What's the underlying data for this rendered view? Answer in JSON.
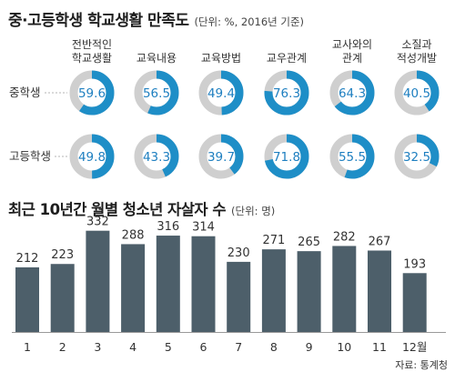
{
  "survey": {
    "title": "중·고등학생 학교생활 만족도",
    "unit_note": "(단위: %, 2016년 기준)"
  },
  "monthly": {
    "title": "최근 10년간 월별 청소년 자살자 수",
    "unit_note": "(단위: 명)"
  },
  "source": "자료: 통계청",
  "colors": {
    "ring_fill": "#1e8ec7",
    "ring_track": "#cfcfcf",
    "ring_value_text": "#1e7fc0",
    "bar": "#4d5f6a",
    "bar_label": "#333333",
    "baseline": "#9a9a9a",
    "dashed_leader": "#b5b5b5"
  },
  "chart_data": [
    {
      "type": "donut",
      "title": "중·고등학생 학교생활 만족도",
      "unit": "%",
      "categories": [
        [
          "전반적인",
          "학교생활"
        ],
        [
          "교육내용"
        ],
        [
          "교육방법"
        ],
        [
          "교우관계"
        ],
        [
          "교사와의",
          "관계"
        ],
        [
          "소질과",
          "적성개발"
        ]
      ],
      "series": [
        {
          "name": "중학생",
          "values": [
            59.6,
            56.5,
            49.4,
            76.3,
            64.3,
            40.5
          ]
        },
        {
          "name": "고등학생",
          "values": [
            49.8,
            43.3,
            39.7,
            71.8,
            55.5,
            32.5
          ]
        }
      ]
    },
    {
      "type": "bar",
      "title": "최근 10년간 월별 청소년 자살자 수",
      "unit": "명",
      "categories": [
        "1",
        "2",
        "3",
        "4",
        "5",
        "6",
        "7",
        "8",
        "9",
        "10",
        "11",
        "12월"
      ],
      "values": [
        212,
        223,
        332,
        288,
        316,
        314,
        230,
        271,
        265,
        282,
        267,
        193
      ],
      "ylim": [
        0,
        340
      ]
    }
  ]
}
